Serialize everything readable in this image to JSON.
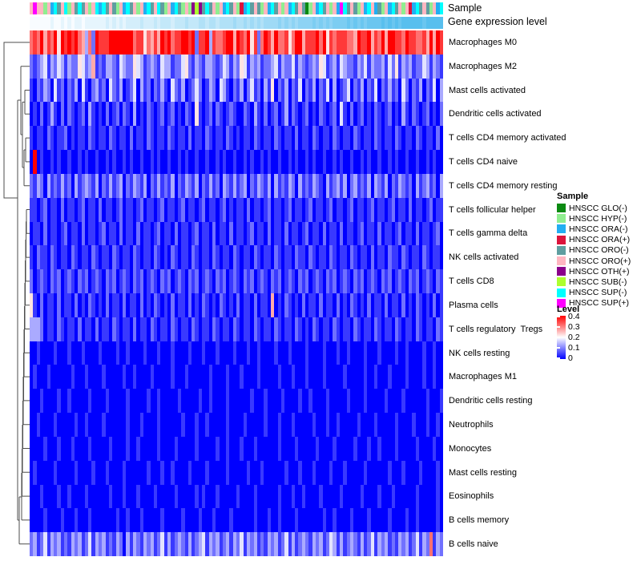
{
  "annotation_labels": {
    "sample": "Sample",
    "gene": "Gene expression level"
  },
  "legend_sample": {
    "title": "Sample",
    "items": [
      {
        "label": "HNSCC GLO(-)",
        "color": "#0b8a12"
      },
      {
        "label": "HNSCC HYP(-)",
        "color": "#90ee90"
      },
      {
        "label": "HNSCC ORA(-)",
        "color": "#22aef2"
      },
      {
        "label": "HNSCC ORA(+)",
        "color": "#dc143c"
      },
      {
        "label": "HNSCC ORO(-)",
        "color": "#5f9ea0"
      },
      {
        "label": "HNSCC ORO(+)",
        "color": "#ffb6c1"
      },
      {
        "label": "HNSCC OTH(+)",
        "color": "#8b008b"
      },
      {
        "label": "HNSCC SUB(-)",
        "color": "#adff2f"
      },
      {
        "label": "HNSCC SUP(-)",
        "color": "#00ffff"
      },
      {
        "label": "HNSCC SUP(+)",
        "color": "#ff00ff"
      }
    ]
  },
  "legend_level": {
    "title": "Level",
    "ticks": [
      "0.4",
      "0.3",
      "0.2",
      "0.1",
      "0"
    ],
    "high_color": "#ff0000",
    "mid_color": "#ffffff",
    "low_color": "#0000ff"
  },
  "chart_data": {
    "type": "heatmap",
    "columns": 120,
    "value_encoding": "each character is a digit 0-9; cell level = digit/9 * 0.45 (legend scale 0 to 0.4)",
    "color_scale": {
      "low": "#0000ff",
      "mid": "#ffffff",
      "high": "#ff0000",
      "low_value": 0,
      "mid_value": 0.2,
      "high_value": 0.4
    },
    "column_annotations": {
      "sample": {
        "label": "Sample",
        "color_map_digits": [
          "#0b8a12",
          "#90ee90",
          "#22aef2",
          "#dc143c",
          "#5f9ea0",
          "#ffb6c1",
          "#8b008b",
          "#adff2f",
          "#00ffff",
          "#ff00ff"
        ],
        "values": "595515284581548451582845415284515284584152841516764845152845132845415284515284540152845152984541528524152845153284541528"
      },
      "gene_expression_level": {
        "label": "Gene expression level",
        "scale_low": "#f8fcff",
        "scale_high": "#58bfee",
        "values": "000000100101011011111121212122223222323332333433344344344445445454545555656565666676767677778787878888989898999999899999"
      }
    },
    "rows": [
      {
        "label": "Macrophages M0",
        "values": "787968795989897637298889999999788576869897889989288938778996987958279869778579968889795878887769889687969988798877869698"
      },
      {
        "label": "Macrophages M2",
        "values": "212341324313225423612133214322543123214331224521321332124313254132312234132241321232541231432213241322314251323122431321"
      },
      {
        "label": "Mast cells activated",
        "values": "102132041202130410231204213012403120213104213012420132043102130241203150213021402130214030124021302140213120420213021403"
      },
      {
        "label": "Dendritic cells activated",
        "values": "010201310202101203101020120210301021012012010210510120210121002103102012013021012010210120410201201021012010310210120102"
      },
      {
        "label": "T cells CD4 memory activated",
        "values": "101102101120101102101102101102011021011021011020110210110210101102101102101102011021011021011021011021011021011021011020"
      },
      {
        "label": "T cells CD4 naive",
        "values": "090100101001001010010010100101001001010010010100100100101001001010010100100101001010010010100100101001001010010010010100"
      },
      {
        "label": "T cells CD4 memory resting",
        "values": "213203121312031232130213123021321302131213021321302131203213123021321303121320312132103123130231213032130213212031231203"
      },
      {
        "label": "T cells follicular helper",
        "values": "110120110201101201102011012011012011012011012011012011012010110201101201101201101201101201101201101201101201102011012011"
      },
      {
        "label": "T cells gamma delta",
        "values": "011020110120110201101201102011020110120110201101201102011020110120110201102011012011020110201101201102011012011020110120"
      },
      {
        "label": "NK cells activated",
        "values": "102110210110210110210110210110210110210102101102101102101102101102101102101102110210110210110210110201102110210110210110"
      },
      {
        "label": "T cells CD8",
        "values": "201210212012102120121021201210212012102120121021201210212012102120121021201210212012102120121021201210212012102120121021"
      },
      {
        "label": "Plasma cells",
        "values": "510201102011020102101020110201102010210102011020102101021010201102011060102101020110201102010210102011020110201021010201"
      },
      {
        "label": "T cells regulatory  Tregs",
        "values": "333201102101102011020110210110201102101102101102101102101102101102101102101102101021011021011021011021011021011021011021"
      },
      {
        "label": "NK cells resting",
        "values": "001000010001000100001000010010000100010001000010001000100001000100100001000100001000010001001000010001000010010000100100"
      },
      {
        "label": "Macrophages M1",
        "values": "010001000000100010000100000100100001000001000100000010000100010000100000100010001000010000010000010010001000010000100100"
      },
      {
        "label": "Dendritic cells resting",
        "values": "000100001001000001000010000010000010010000010000010010000100000010001000010000100100001000001000010000010000100000010001"
      },
      {
        "label": "Neutrophils",
        "values": "001000010000010010000100000010001000010000001000100100000100001000001000100010000010001001000001000010000010000100010010"
      },
      {
        "label": "Monocytes",
        "values": "000010001000100001000001000010010000010000100000100000100100010001000000100001000001000010000010001001000010000010000100"
      },
      {
        "label": "Mast cells resting",
        "values": "010000010000010000100010000100000010001001000010000100000100000100010000001000100010000100010000010000001000100001000010"
      },
      {
        "label": "Eosinophils",
        "values": "000100001001000010000001000100010000100000100000101000100000100001000000100010010000100000100000100001000100000010000010"
      },
      {
        "label": "B cells memory",
        "values": "000010000100010001000000010010001000001000001000010001000010000001000100100001000000010010000100001000001000010010000010"
      },
      {
        "label": "B cells naive",
        "values": "231241323121323124132312132031321323124131232131234132312313241323121323124131232132312431312321312413231213231241327132"
      }
    ]
  }
}
